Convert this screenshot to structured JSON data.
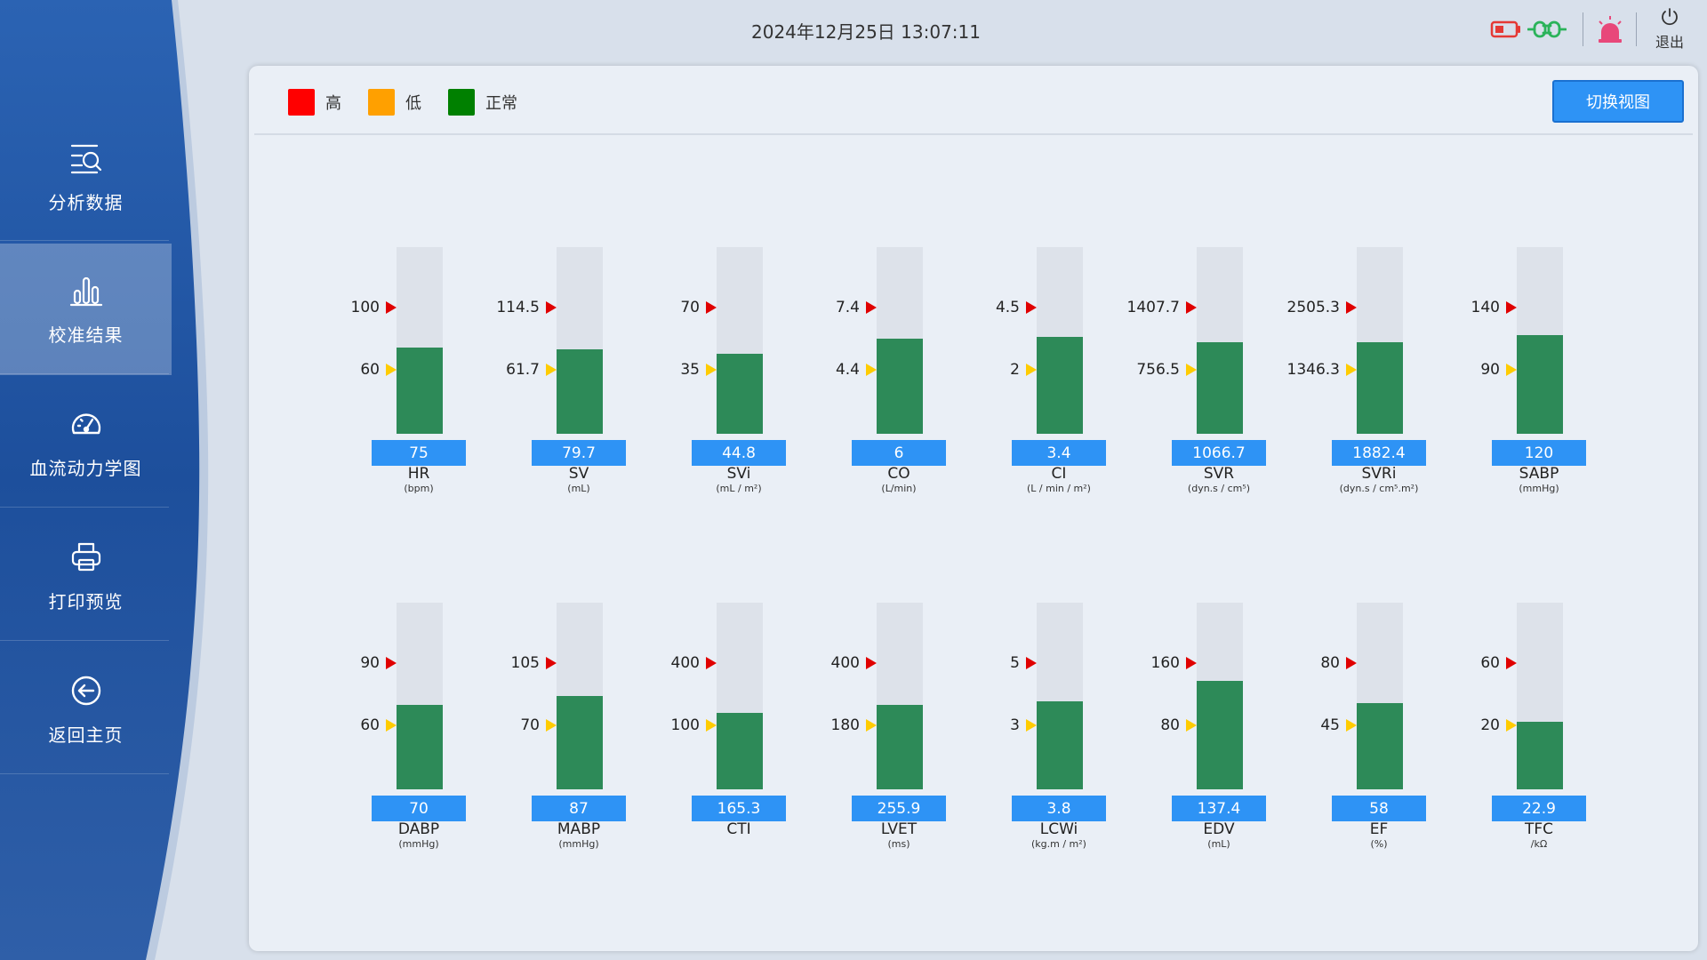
{
  "header": {
    "datetime": "2024年12月25日 13:07:11",
    "exit_label": "退出"
  },
  "sidebar": {
    "items": [
      {
        "label": "分析数据",
        "icon": "search-list-icon"
      },
      {
        "label": "校准结果",
        "icon": "bar-chart-icon",
        "active": true
      },
      {
        "label": "血流动力学图",
        "icon": "gauge-icon"
      },
      {
        "label": "打印预览",
        "icon": "printer-icon"
      },
      {
        "label": "返回主页",
        "icon": "back-arrow-icon"
      }
    ]
  },
  "legend": [
    {
      "label": "高",
      "color": "#ff0000"
    },
    {
      "label": "低",
      "color": "#ffa000"
    },
    {
      "label": "正常",
      "color": "#008000"
    }
  ],
  "switch_view_label": "切换视图",
  "fill_color": "#2d8a58",
  "chart_data": {
    "type": "bar",
    "description_note": "Each gauge shows the measured value as a vertical fill; fill level is the value's position on the gauge scale (fraction 0-1)",
    "gauges": [
      {
        "name": "HR",
        "unit": "(bpm)",
        "value": "75",
        "high": "100",
        "low": "60",
        "fill_level": 0.46
      },
      {
        "name": "SV",
        "unit": "(mL)",
        "value": "79.7",
        "high": "114.5",
        "low": "61.7",
        "fill_level": 0.45
      },
      {
        "name": "SVi",
        "unit": "(mL / m²)",
        "value": "44.8",
        "high": "70",
        "low": "35",
        "fill_level": 0.43
      },
      {
        "name": "CO",
        "unit": "(L/min)",
        "value": "6",
        "high": "7.4",
        "low": "4.4",
        "fill_level": 0.51
      },
      {
        "name": "CI",
        "unit": "(L / min / m²)",
        "value": "3.4",
        "high": "4.5",
        "low": "2",
        "fill_level": 0.52
      },
      {
        "name": "SVR",
        "unit": "(dyn.s / cm⁵)",
        "value": "1066.7",
        "high": "1407.7",
        "low": "756.5",
        "fill_level": 0.49
      },
      {
        "name": "SVRi",
        "unit": "(dyn.s / cm⁵.m²)",
        "value": "1882.4",
        "high": "2505.3",
        "low": "1346.3",
        "fill_level": 0.49
      },
      {
        "name": "SABP",
        "unit": "(mmHg)",
        "value": "120",
        "high": "140",
        "low": "90",
        "fill_level": 0.53
      },
      {
        "name": "DABP",
        "unit": "(mmHg)",
        "value": "70",
        "high": "90",
        "low": "60",
        "fill_level": 0.45
      },
      {
        "name": "MABP",
        "unit": "(mmHg)",
        "value": "87",
        "high": "105",
        "low": "70",
        "fill_level": 0.5
      },
      {
        "name": "CTI",
        "unit": "",
        "value": "165.3",
        "high": "400",
        "low": "100",
        "fill_level": 0.41
      },
      {
        "name": "LVET",
        "unit": "(ms)",
        "value": "255.9",
        "high": "400",
        "low": "180",
        "fill_level": 0.45
      },
      {
        "name": "LCWi",
        "unit": "(kg.m / m²)",
        "value": "3.8",
        "high": "5",
        "low": "3",
        "fill_level": 0.47
      },
      {
        "name": "EDV",
        "unit": "(mL)",
        "value": "137.4",
        "high": "160",
        "low": "80",
        "fill_level": 0.58
      },
      {
        "name": "EF",
        "unit": "(%)",
        "value": "58",
        "high": "80",
        "low": "45",
        "fill_level": 0.46
      },
      {
        "name": "TFC",
        "unit": "/kΩ",
        "value": "22.9",
        "high": "60",
        "low": "20",
        "fill_level": 0.36
      }
    ]
  }
}
